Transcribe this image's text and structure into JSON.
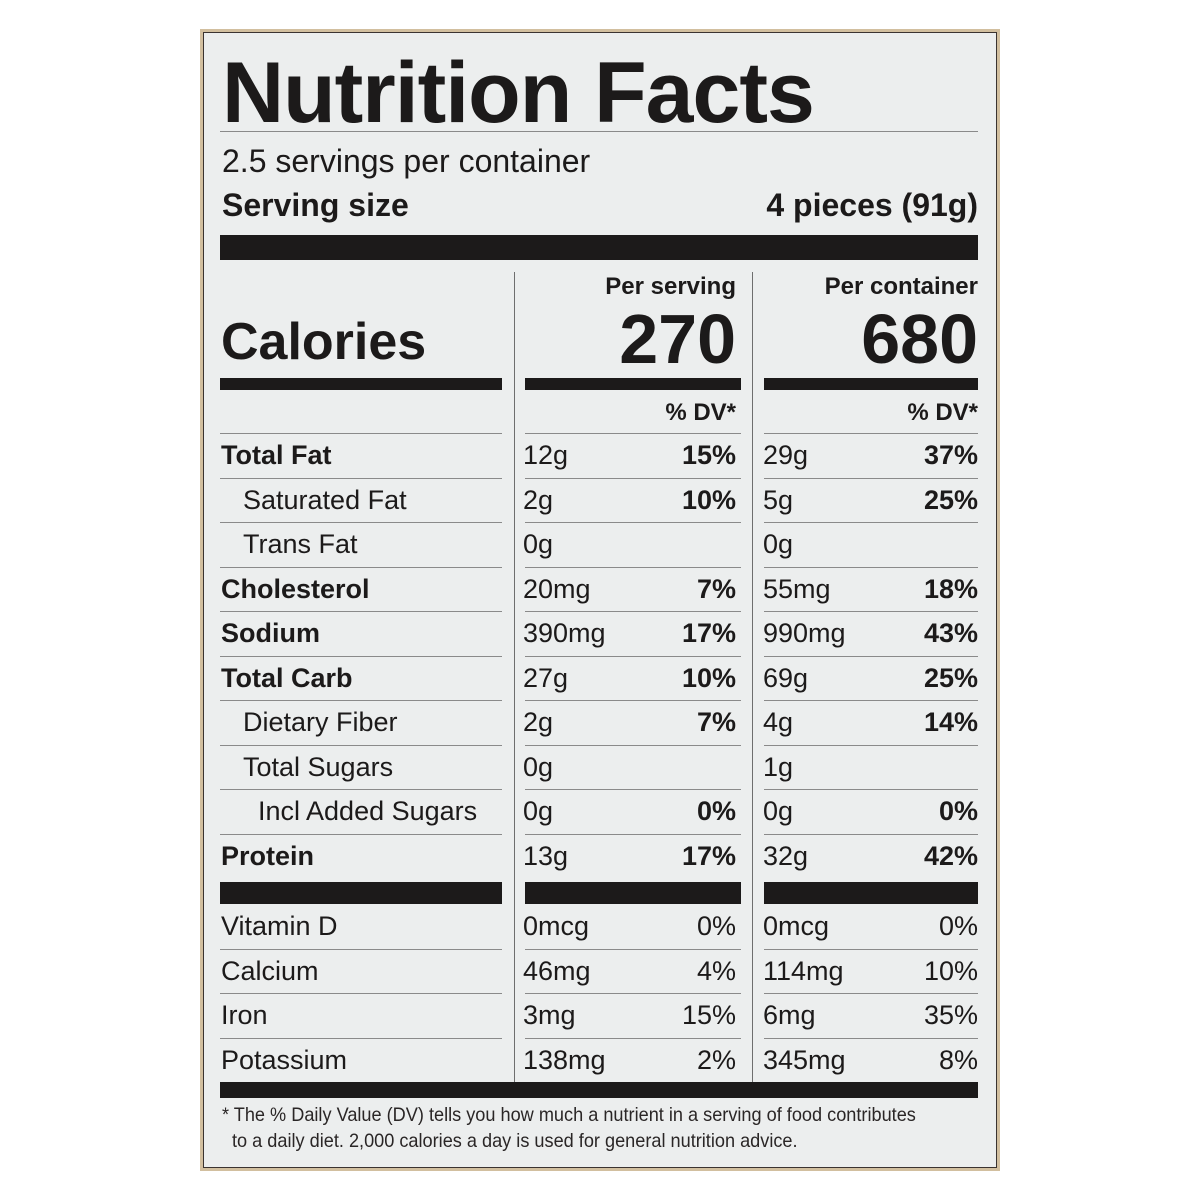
{
  "title": "Nutrition Facts",
  "servings_per_container": "2.5 servings per container",
  "serving_size_label": "Serving size",
  "serving_size_value": "4 pieces (91g)",
  "calories_label": "Calories",
  "columns": [
    {
      "header": "Per serving",
      "calories": "270",
      "dv_header": "% DV*"
    },
    {
      "header": "Per container",
      "calories": "680",
      "dv_header": "% DV*"
    }
  ],
  "nutrients": [
    {
      "name": "Total Fat",
      "bold": true,
      "indent": 0,
      "serving": "12g",
      "serving_dv": "15%",
      "container": "29g",
      "container_dv": "37%"
    },
    {
      "name": "Saturated Fat",
      "bold": false,
      "indent": 1,
      "serving": "2g",
      "serving_dv": "10%",
      "container": "5g",
      "container_dv": "25%"
    },
    {
      "name": "Trans Fat",
      "bold": false,
      "indent": 1,
      "serving": "0g",
      "serving_dv": "",
      "container": "0g",
      "container_dv": ""
    },
    {
      "name": "Cholesterol",
      "bold": true,
      "indent": 0,
      "serving": "20mg",
      "serving_dv": "7%",
      "container": "55mg",
      "container_dv": "18%"
    },
    {
      "name": "Sodium",
      "bold": true,
      "indent": 0,
      "serving": "390mg",
      "serving_dv": "17%",
      "container": "990mg",
      "container_dv": "43%"
    },
    {
      "name": "Total Carb",
      "bold": true,
      "indent": 0,
      "serving": "27g",
      "serving_dv": "10%",
      "container": "69g",
      "container_dv": "25%"
    },
    {
      "name": "Dietary Fiber",
      "bold": false,
      "indent": 1,
      "serving": "2g",
      "serving_dv": "7%",
      "container": "4g",
      "container_dv": "14%"
    },
    {
      "name": "Total Sugars",
      "bold": false,
      "indent": 1,
      "serving": "0g",
      "serving_dv": "",
      "container": "1g",
      "container_dv": ""
    },
    {
      "name": "Incl Added Sugars",
      "bold": false,
      "indent": 2,
      "serving": "0g",
      "serving_dv": "0%",
      "container": "0g",
      "container_dv": "0%"
    },
    {
      "name": "Protein",
      "bold": true,
      "indent": 0,
      "serving": "13g",
      "serving_dv": "17%",
      "container": "32g",
      "container_dv": "42%"
    }
  ],
  "vitamins": [
    {
      "name": "Vitamin D",
      "serving": "0mcg",
      "serving_dv": "0%",
      "container": "0mcg",
      "container_dv": "0%"
    },
    {
      "name": "Calcium",
      "serving": "46mg",
      "serving_dv": "4%",
      "container": "114mg",
      "container_dv": "10%"
    },
    {
      "name": "Iron",
      "serving": "3mg",
      "serving_dv": "15%",
      "container": "6mg",
      "container_dv": "35%"
    },
    {
      "name": "Potassium",
      "serving": "138mg",
      "serving_dv": "2%",
      "container": "345mg",
      "container_dv": "8%"
    }
  ],
  "footnote_line1": "* The % Daily Value (DV) tells you how much a nutrient in a serving of food contributes",
  "footnote_line2": "to a daily diet. 2,000 calories a day is used for general nutrition advice."
}
